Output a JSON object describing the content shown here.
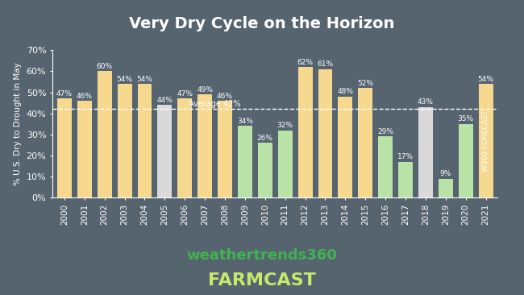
{
  "chart_data": {
    "type": "bar",
    "title": "Very Dry Cycle on the Horizon",
    "ylabel": "% U.S. Dry to Drought in May",
    "categories": [
      "2000",
      "2001",
      "2002",
      "2003",
      "2004",
      "2005",
      "2006",
      "2007",
      "2008",
      "2009",
      "2010",
      "2011",
      "2012",
      "2013",
      "2014",
      "2015",
      "2016",
      "2017",
      "2018",
      "2019",
      "2020",
      "2021"
    ],
    "values": [
      47,
      46,
      60,
      54,
      54,
      44,
      47,
      49,
      46,
      34,
      26,
      32,
      62,
      61,
      48,
      52,
      29,
      17,
      43,
      9,
      35,
      54
    ],
    "value_labels": [
      "47%",
      "46%",
      "60%",
      "54%",
      "54%",
      "44%",
      "47%",
      "49%",
      "46%",
      "34%",
      "26%",
      "32%",
      "62%",
      "61%",
      "48%",
      "52%",
      "29%",
      "17%",
      "43%",
      "9%",
      "35%",
      "54%"
    ],
    "colors": [
      "#f6d88e",
      "#f6d88e",
      "#f6d88e",
      "#f6d88e",
      "#f6d88e",
      "#d9d9d9",
      "#f6d88e",
      "#f6d88e",
      "#f6d88e",
      "#b9e3a6",
      "#b9e3a6",
      "#b9e3a6",
      "#f6d88e",
      "#f6d88e",
      "#f6d88e",
      "#f6d88e",
      "#b9e3a6",
      "#b9e3a6",
      "#d9d9d9",
      "#b9e3a6",
      "#b9e3a6",
      "#f6d88e"
    ],
    "data_labels": true,
    "grid": false,
    "ylim": [
      0,
      70
    ],
    "yticks": [
      {
        "value": 0,
        "label": "0%"
      },
      {
        "value": 10,
        "label": "10%"
      },
      {
        "value": 20,
        "label": "20%"
      },
      {
        "value": 30,
        "label": "30%"
      },
      {
        "value": 40,
        "label": "40%"
      },
      {
        "value": 50,
        "label": "50%"
      },
      {
        "value": 60,
        "label": "60%"
      },
      {
        "value": 70,
        "label": "70%"
      }
    ],
    "average_line": {
      "value": 42,
      "label": "Average 42%"
    },
    "forecast_note": "W360 FORECAST",
    "logo": [
      "weathertrends360",
      "FARMCAST"
    ]
  }
}
